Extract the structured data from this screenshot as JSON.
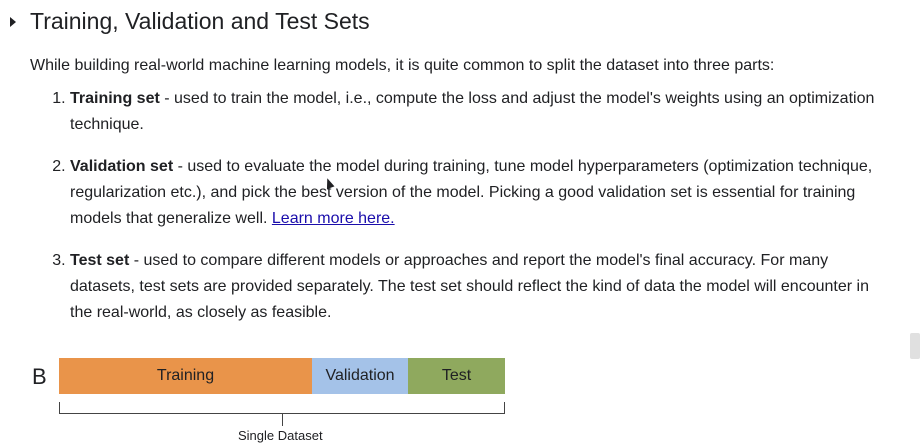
{
  "heading": {
    "title": "Training, Validation and Test Sets"
  },
  "intro": "While building real-world machine learning models, it is quite common to split the dataset into three parts:",
  "items": [
    {
      "term": "Training set",
      "text": " - used to train the model, i.e., compute the loss and adjust the model's weights using an optimization technique."
    },
    {
      "term": "Validation set",
      "text": " - used to evaluate the model during training, tune model hyperparameters (optimization technique, regularization etc.), and pick the best version of the model. Picking a good validation set is essential for training models that generalize well. ",
      "link": "Learn more here."
    },
    {
      "term": "Test set",
      "text": " - used to compare different models or approaches and report the model's final accuracy. For many datasets, test sets are provided separately. The test set should reflect the kind of data the model will encounter in the real-world, as closely as feasible."
    }
  ],
  "figure": {
    "letter": "B",
    "segments": [
      {
        "label": "Training",
        "color": "#e9944a"
      },
      {
        "label": "Validation",
        "color": "#a4c2e8"
      },
      {
        "label": "Test",
        "color": "#8fa95e"
      }
    ],
    "caption": "Single Dataset"
  }
}
